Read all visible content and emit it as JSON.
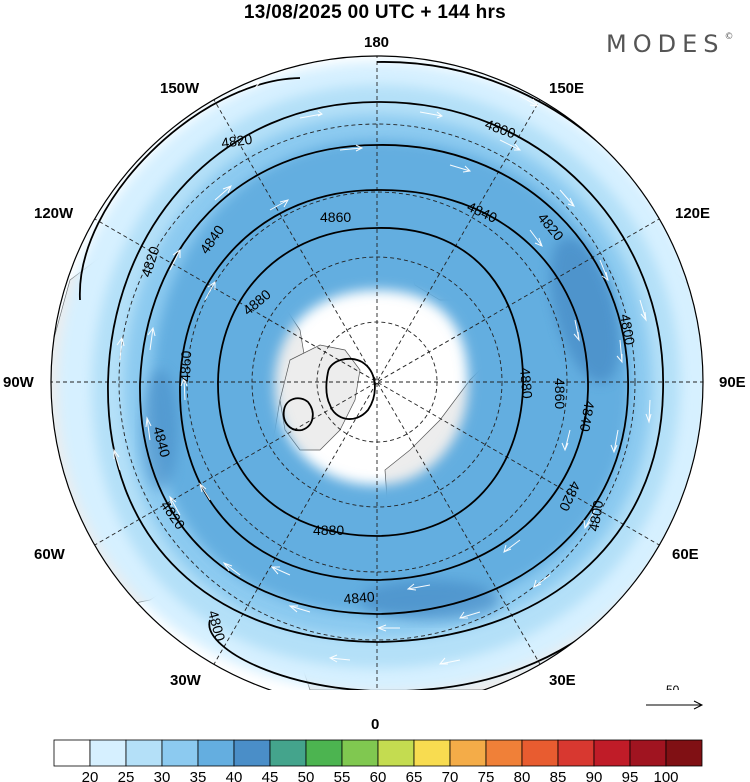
{
  "title": "13/08/2025  00 UTC  + 144 hrs",
  "brand": {
    "name": "MODES",
    "mark": "©"
  },
  "longitude_labels": [
    {
      "key": "n180",
      "text": "180"
    },
    {
      "key": "w150",
      "text": "150W"
    },
    {
      "key": "e150",
      "text": "150E"
    },
    {
      "key": "w120",
      "text": "120W"
    },
    {
      "key": "e120",
      "text": "120E"
    },
    {
      "key": "w90",
      "text": "90W"
    },
    {
      "key": "e90",
      "text": "90E"
    },
    {
      "key": "w60",
      "text": "60W"
    },
    {
      "key": "e60",
      "text": "60E"
    },
    {
      "key": "w30",
      "text": "30W"
    },
    {
      "key": "e30",
      "text": "30E"
    },
    {
      "key": "s0",
      "text": "0"
    }
  ],
  "contour_labels": [
    {
      "text": "4820"
    },
    {
      "text": "4800"
    },
    {
      "text": "4860"
    },
    {
      "text": "4840"
    },
    {
      "text": "4820"
    },
    {
      "text": "4840"
    },
    {
      "text": "4820"
    },
    {
      "text": "4880"
    },
    {
      "text": "4860"
    },
    {
      "text": "4880"
    },
    {
      "text": "4860"
    },
    {
      "text": "4800"
    },
    {
      "text": "4840"
    },
    {
      "text": "4840"
    },
    {
      "text": "4820"
    },
    {
      "text": "4820"
    },
    {
      "text": "4880"
    },
    {
      "text": "4800"
    },
    {
      "text": "4840"
    },
    {
      "text": "4800"
    }
  ],
  "vector_reference": {
    "value": "50"
  },
  "colorbar": {
    "colors": [
      "#ffffff",
      "#d6f0ff",
      "#b4e0f8",
      "#8ccaf0",
      "#64aee0",
      "#4a8ec8",
      "#44a48c",
      "#4cb450",
      "#80c850",
      "#c4dc50",
      "#f8dc50",
      "#f4ac48",
      "#f08038",
      "#e85c30",
      "#d83830",
      "#c01c28",
      "#a01420",
      "#801014"
    ],
    "labels": [
      "20",
      "25",
      "30",
      "35",
      "40",
      "45",
      "50",
      "55",
      "60",
      "65",
      "70",
      "75",
      "80",
      "85",
      "90",
      "95",
      "100"
    ]
  }
}
